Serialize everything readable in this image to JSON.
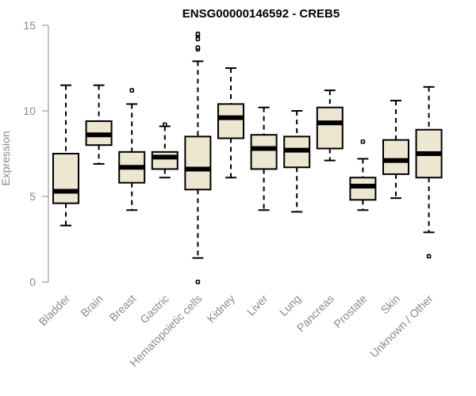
{
  "chart_data": {
    "type": "boxplot",
    "title": "ENSG00000146592 - CREB5",
    "xlabel": "",
    "ylabel": "Expression",
    "ylim": [
      0,
      15
    ],
    "yticks": [
      0,
      5,
      10,
      15
    ],
    "categories": [
      "Bladder",
      "Brain",
      "Breast",
      "Gastric",
      "Hematopoietic cells",
      "Kidney",
      "Liver",
      "Lung",
      "Pancreas",
      "Prostate",
      "Skin",
      "Unknown / Other"
    ],
    "boxes": [
      {
        "category": "Bladder",
        "min": 3.3,
        "q1": 4.6,
        "median": 5.3,
        "q3": 7.5,
        "max": 11.5,
        "outliers": []
      },
      {
        "category": "Brain",
        "min": 6.9,
        "q1": 8.0,
        "median": 8.6,
        "q3": 9.4,
        "max": 11.5,
        "outliers": []
      },
      {
        "category": "Breast",
        "min": 4.2,
        "q1": 5.8,
        "median": 6.7,
        "q3": 7.6,
        "max": 10.4,
        "outliers": [
          11.2
        ]
      },
      {
        "category": "Gastric",
        "min": 6.1,
        "q1": 6.6,
        "median": 7.3,
        "q3": 7.6,
        "max": 9.1,
        "outliers": [
          9.2
        ]
      },
      {
        "category": "Hematopoietic cells",
        "min": 1.4,
        "q1": 5.4,
        "median": 6.6,
        "q3": 8.5,
        "max": 12.9,
        "outliers": [
          0.0,
          13.6,
          13.7,
          14.2,
          14.4,
          14.5
        ]
      },
      {
        "category": "Kidney",
        "min": 6.1,
        "q1": 8.4,
        "median": 9.6,
        "q3": 10.4,
        "max": 12.5,
        "outliers": []
      },
      {
        "category": "Liver",
        "min": 4.2,
        "q1": 6.6,
        "median": 7.8,
        "q3": 8.6,
        "max": 10.2,
        "outliers": []
      },
      {
        "category": "Lung",
        "min": 4.1,
        "q1": 6.7,
        "median": 7.7,
        "q3": 8.5,
        "max": 10.0,
        "outliers": []
      },
      {
        "category": "Pancreas",
        "min": 7.1,
        "q1": 7.8,
        "median": 9.3,
        "q3": 10.2,
        "max": 11.2,
        "outliers": []
      },
      {
        "category": "Prostate",
        "min": 4.2,
        "q1": 4.8,
        "median": 5.6,
        "q3": 6.1,
        "max": 7.2,
        "outliers": [
          8.2
        ]
      },
      {
        "category": "Skin",
        "min": 4.9,
        "q1": 6.3,
        "median": 7.1,
        "q3": 8.3,
        "max": 10.6,
        "outliers": []
      },
      {
        "category": "Unknown / Other",
        "min": 2.9,
        "q1": 6.1,
        "median": 7.5,
        "q3": 8.9,
        "max": 11.4,
        "outliers": [
          1.5
        ]
      }
    ],
    "colors": {
      "box_fill": "#ede6d0",
      "line": "#000000",
      "axis": "#8a8a8a"
    }
  }
}
